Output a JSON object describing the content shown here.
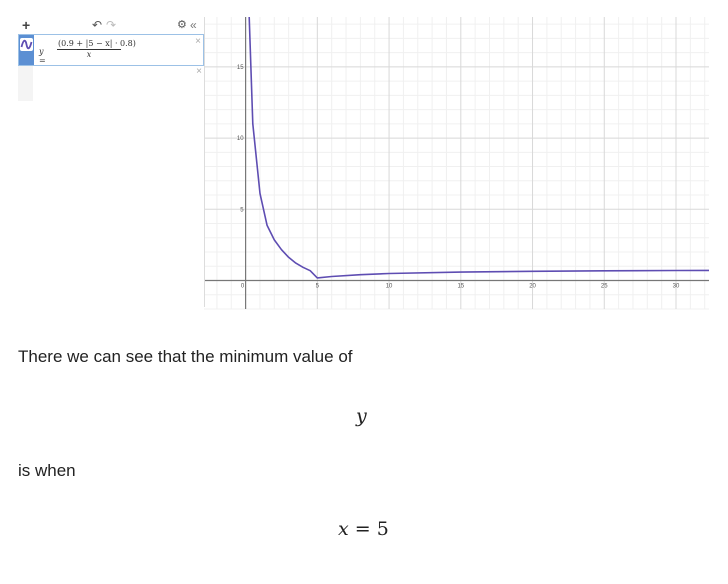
{
  "toolbar": {
    "add_glyph": "+",
    "undo_glyph": "↶",
    "redo_glyph": "↷",
    "settings_glyph": "⚙",
    "collapse_glyph": "«"
  },
  "expression": {
    "lhs": "y =",
    "numerator": "(0.9 + |5 − x| · 0.8)",
    "denominator": "x",
    "close_glyph": "×",
    "color": "#5e4db2"
  },
  "empty_expression": {
    "close_glyph": "×"
  },
  "chart_data": {
    "type": "line",
    "function": "y = (0.9 + |5 - x| * 0.8) / x",
    "xlim": [
      -2.9,
      32.3
    ],
    "ylim": [
      -2,
      18.5
    ],
    "x_ticks": [
      "0",
      "5",
      "10",
      "15",
      "20",
      "25",
      "30"
    ],
    "y_ticks": [
      "5",
      "10",
      "15"
    ],
    "grid": true,
    "series": [
      {
        "color": "#5e4db2",
        "points": [
          [
            0.25,
            18.5
          ],
          [
            0.5,
            11
          ],
          [
            1,
            6.1
          ],
          [
            1.5,
            3.87
          ],
          [
            2,
            2.85
          ],
          [
            2.5,
            2.16
          ],
          [
            3,
            1.63
          ],
          [
            3.5,
            1.22
          ],
          [
            4,
            0.93
          ],
          [
            4.5,
            0.69
          ],
          [
            5,
            0.18
          ],
          [
            6,
            0.28
          ],
          [
            8,
            0.41
          ],
          [
            10,
            0.49
          ],
          [
            15,
            0.59
          ],
          [
            20,
            0.65
          ],
          [
            25,
            0.68
          ],
          [
            30,
            0.7
          ],
          [
            32.3,
            0.71
          ]
        ]
      }
    ]
  },
  "text": {
    "line1": "There we can see that the minimum value of",
    "math1": "y",
    "line2": "is when",
    "math2_var": "x",
    "math2_rest": " = 5"
  }
}
